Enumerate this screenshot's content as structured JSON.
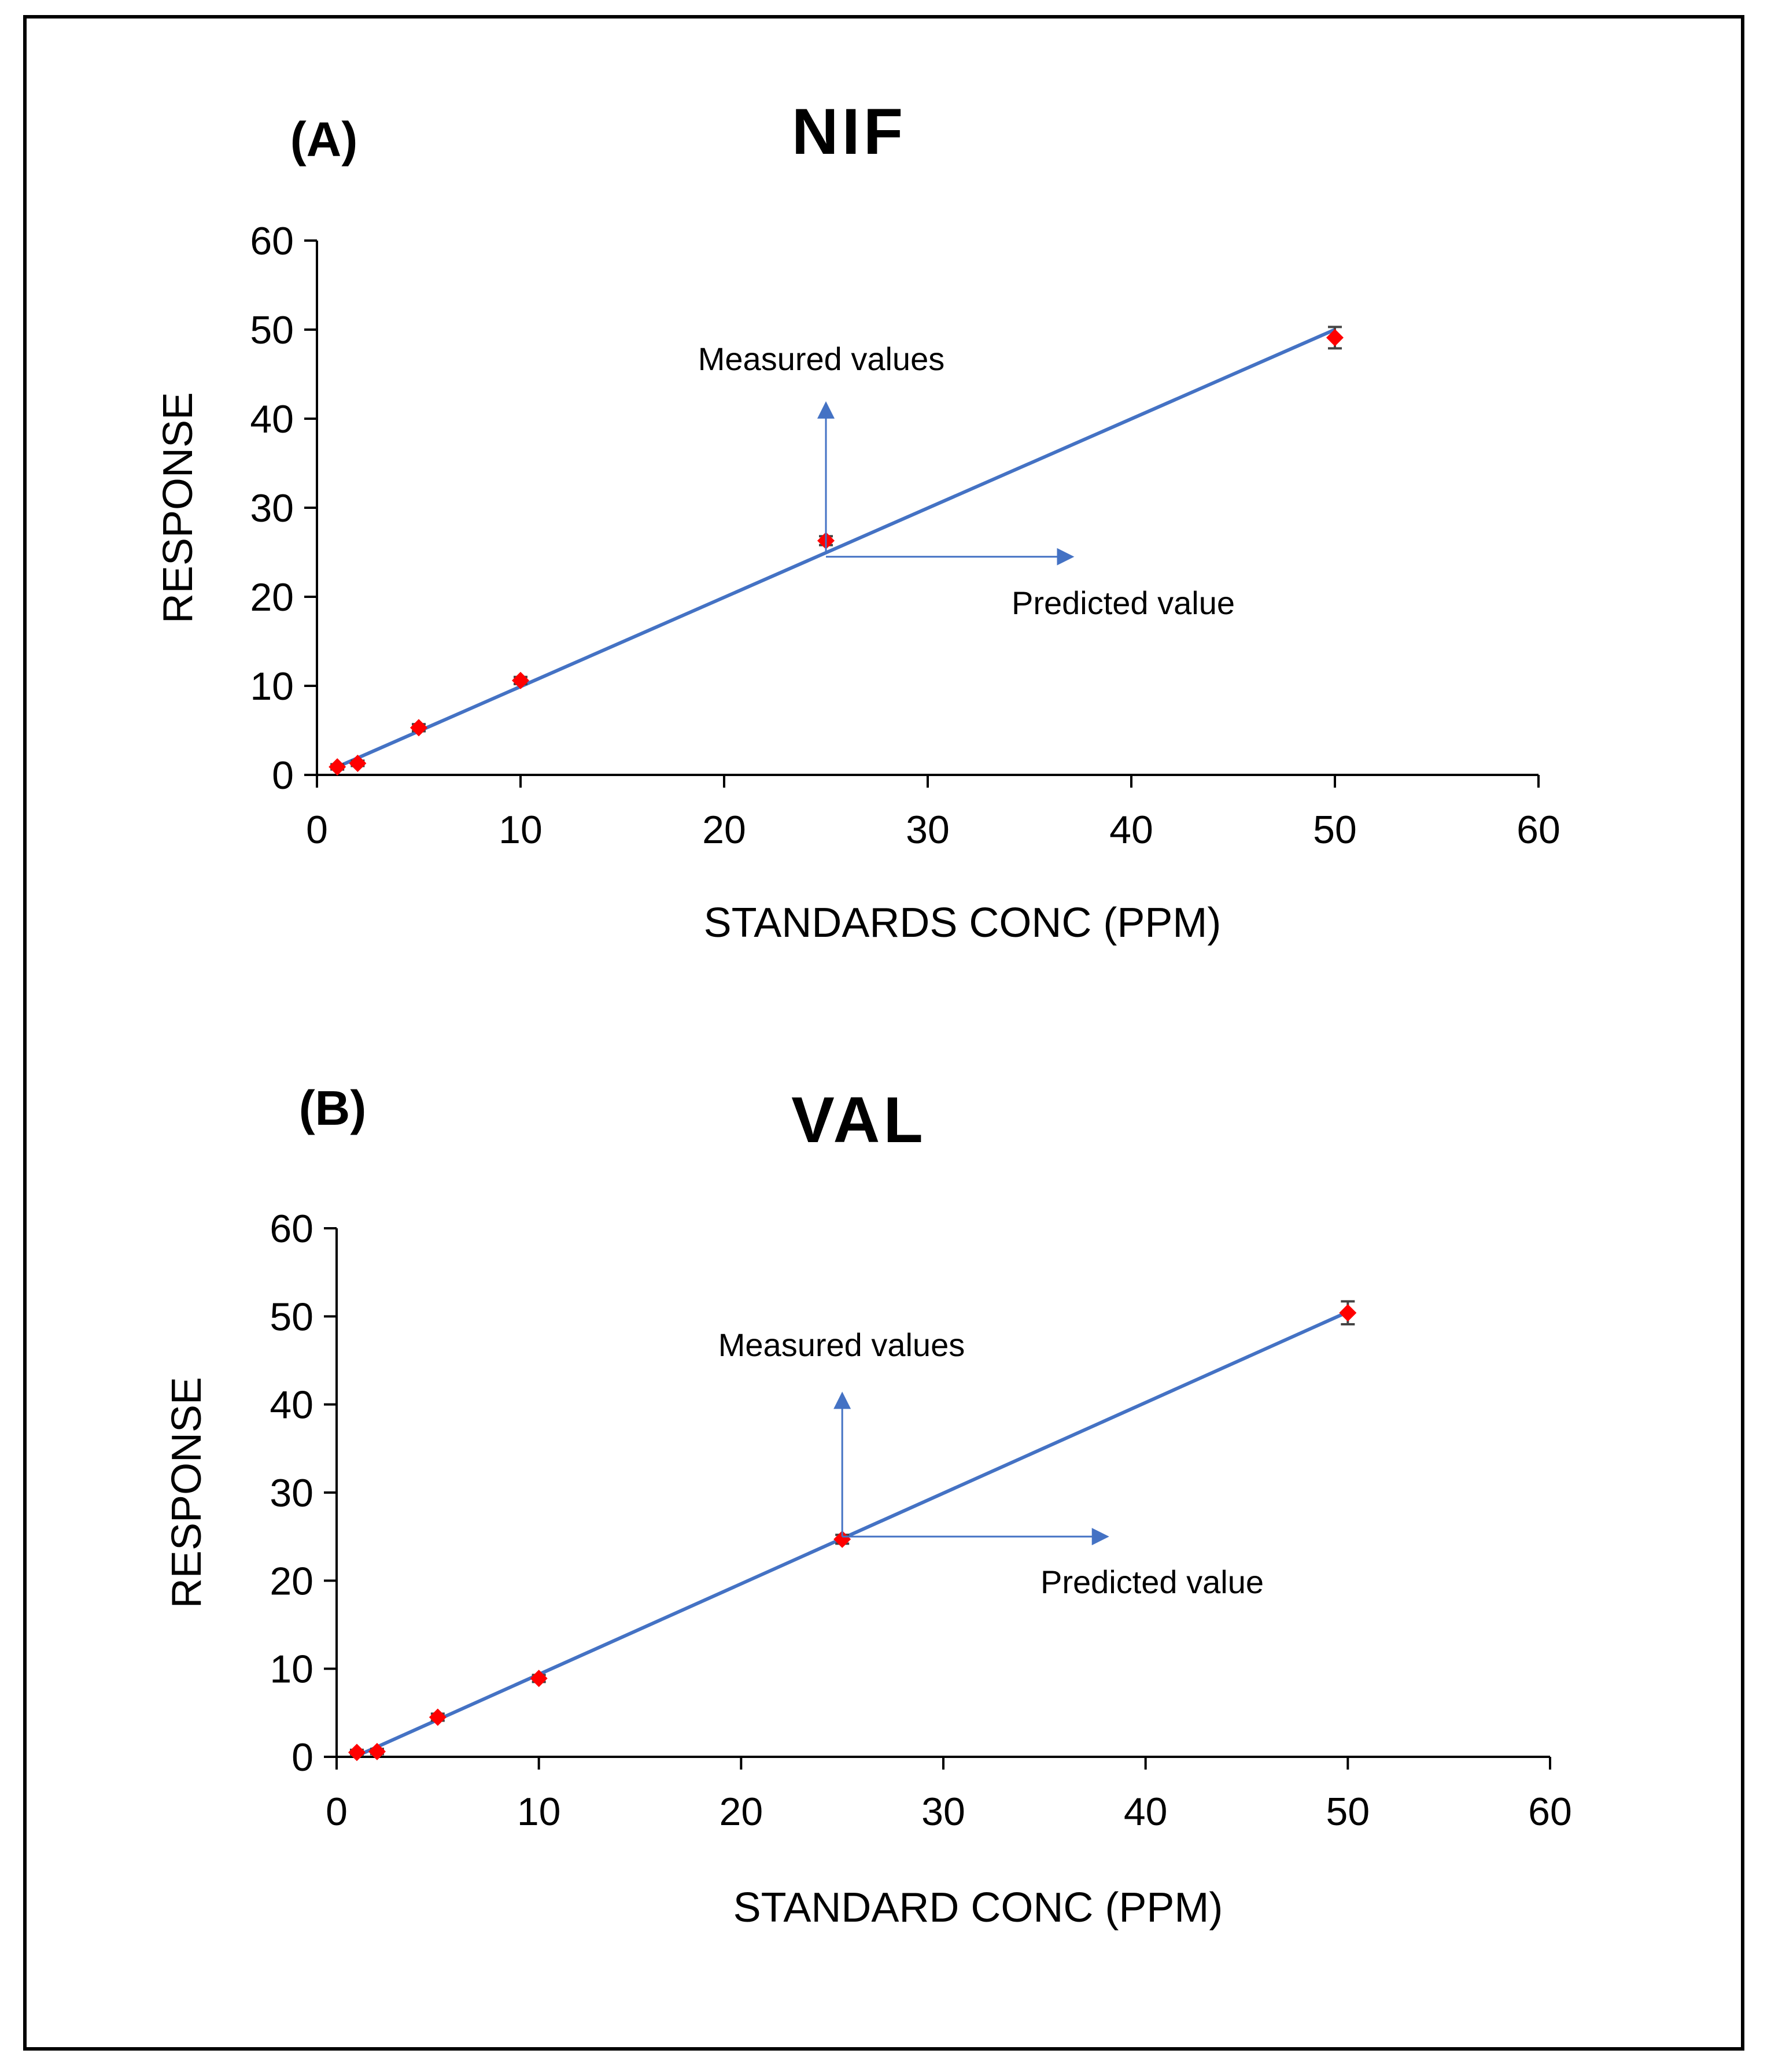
{
  "chart_data": [
    {
      "type": "scatter",
      "panel_label": "(A)",
      "title": "NIF",
      "xlabel": "STANDARDS CONC (PPM)",
      "ylabel": "RESPONSE",
      "xlim": [
        0,
        60
      ],
      "ylim": [
        0,
        60
      ],
      "x_ticks": [
        0,
        10,
        20,
        30,
        40,
        50,
        60
      ],
      "y_ticks": [
        0,
        10,
        20,
        30,
        40,
        50,
        60
      ],
      "grid": false,
      "series": [
        {
          "name": "Measured",
          "marker": "diamond",
          "color": "#FF0000",
          "x": [
            1,
            2,
            5,
            10,
            25,
            50
          ],
          "y": [
            0.9,
            1.3,
            5.3,
            10.6,
            26.3,
            49.1
          ],
          "error": [
            0.3,
            0.3,
            0.4,
            0.4,
            0.5,
            1.2
          ]
        }
      ],
      "trendline": {
        "type": "linear",
        "color": "#4472C4",
        "x": [
          1,
          50
        ],
        "y": [
          0.9,
          50
        ]
      },
      "annotations": [
        {
          "text": "Measured values",
          "arrow_from": [
            25,
            25
          ],
          "arrow_to": [
            25,
            41.5
          ],
          "direction": "up"
        },
        {
          "text": "Predicted value",
          "arrow_from": [
            25,
            24.5
          ],
          "arrow_to": [
            37,
            24.5
          ],
          "direction": "right"
        }
      ]
    },
    {
      "type": "scatter",
      "panel_label": "(B)",
      "title": "VAL",
      "xlabel": "STANDARD CONC (PPM)",
      "ylabel": "RESPONSE",
      "xlim": [
        0,
        60
      ],
      "ylim": [
        0,
        60
      ],
      "x_ticks": [
        0,
        10,
        20,
        30,
        40,
        50,
        60
      ],
      "y_ticks": [
        0,
        10,
        20,
        30,
        40,
        50,
        60
      ],
      "grid": false,
      "series": [
        {
          "name": "Measured",
          "marker": "diamond",
          "color": "#FF0000",
          "x": [
            1,
            2,
            5,
            10,
            25,
            50
          ],
          "y": [
            0.5,
            0.6,
            4.5,
            8.9,
            24.7,
            50.4
          ],
          "error": [
            0.3,
            0.3,
            0.4,
            0.4,
            0.5,
            1.3
          ]
        }
      ],
      "trendline": {
        "type": "linear",
        "color": "#4472C4",
        "x": [
          1,
          50
        ],
        "y": [
          0.1,
          50.5
        ]
      },
      "annotations": [
        {
          "text": "Measured values",
          "arrow_from": [
            25,
            25
          ],
          "arrow_to": [
            25,
            41
          ],
          "direction": "up"
        },
        {
          "text": "Predicted value",
          "arrow_from": [
            25,
            25
          ],
          "arrow_to": [
            38,
            25
          ],
          "direction": "right"
        }
      ]
    }
  ]
}
